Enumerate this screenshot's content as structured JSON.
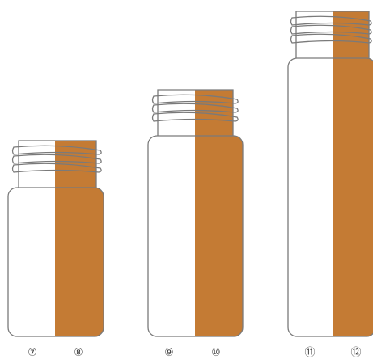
{
  "colors": {
    "amber": "#C47B34",
    "clear": "#FFFFFF",
    "outline": "#7A7A7A",
    "label_text": "#444444"
  },
  "vials": [
    {
      "size": "small",
      "left_label": "⑦",
      "right_label": "⑧"
    },
    {
      "size": "medium",
      "left_label": "⑨",
      "right_label": "⑩"
    },
    {
      "size": "large",
      "left_label": "⑪",
      "right_label": "⑫"
    }
  ]
}
